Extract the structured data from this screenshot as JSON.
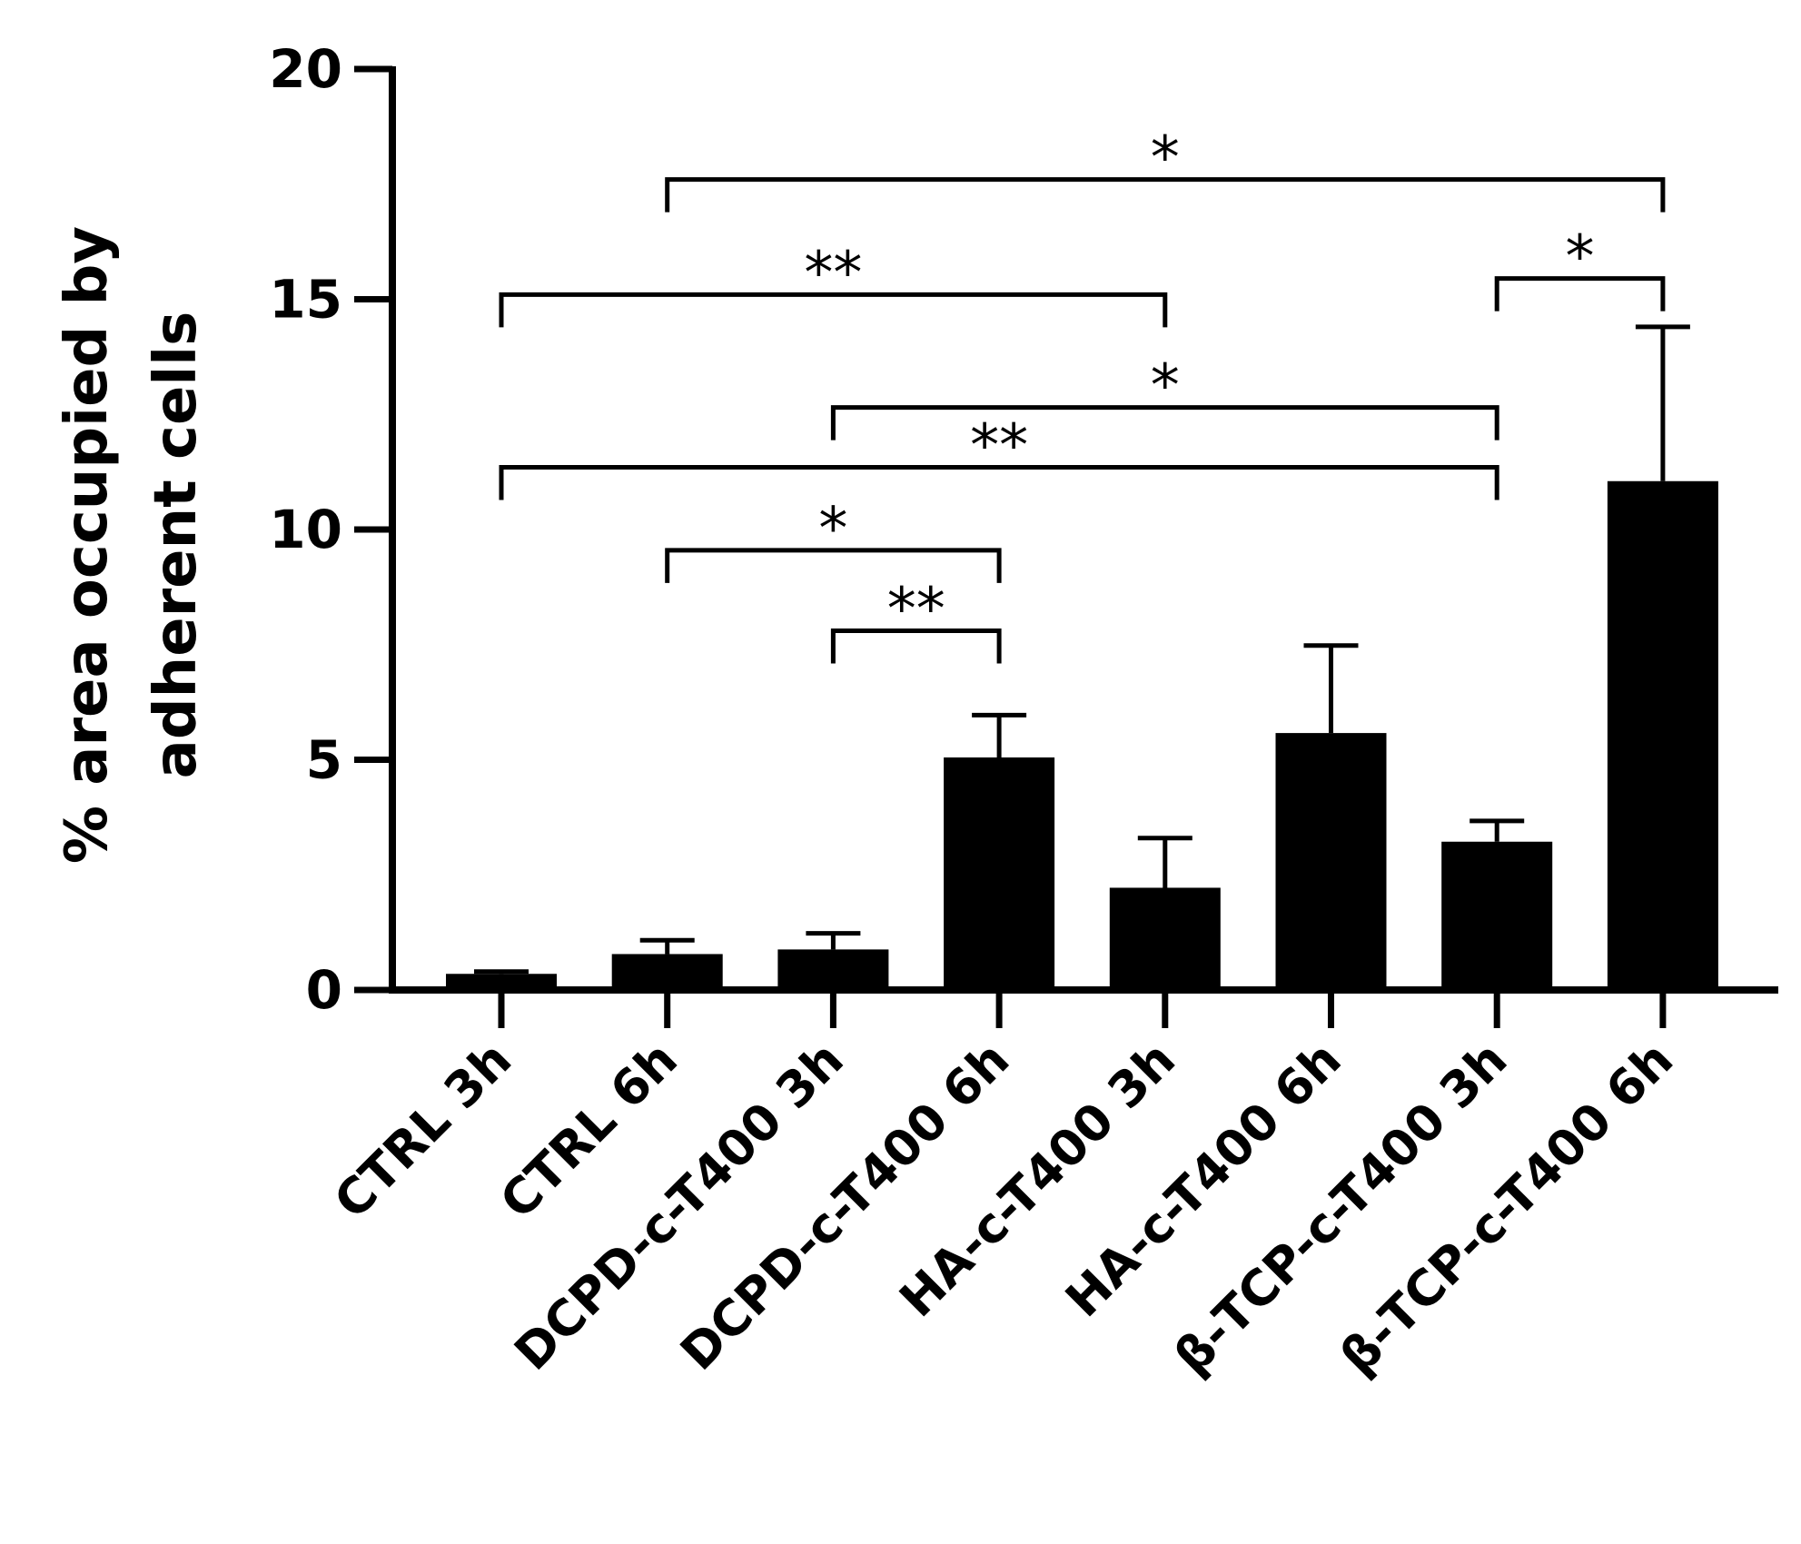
{
  "chart_data": {
    "type": "bar",
    "title": "",
    "xlabel": "",
    "ylabel_lines": [
      "% area occupied by",
      "adherent cells"
    ],
    "ylim": [
      0,
      20
    ],
    "yticks": [
      0,
      5,
      10,
      15,
      20
    ],
    "categories": [
      "CTRL 3h",
      "CTRL 6h",
      "DCPD-c-T400 3h",
      "DCPD-c-T400 6h",
      "HA-c-T400 3h",
      "HA-c-T400 6h",
      "β-TCP-c-T400 3h",
      "β-TCP-c-T400 6h"
    ],
    "values": [
      0.35,
      0.78,
      0.88,
      5.05,
      2.22,
      5.58,
      3.22,
      11.05
    ],
    "errors": [
      0.05,
      0.3,
      0.35,
      0.92,
      1.08,
      1.9,
      0.45,
      3.35
    ],
    "colors": {
      "bar": "#000000",
      "axis": "#000000"
    },
    "significance": [
      {
        "from": 1,
        "to": 7,
        "label": "*",
        "level": 17.6
      },
      {
        "from": 0,
        "to": 4,
        "label": "**",
        "level": 15.1
      },
      {
        "from": 6,
        "to": 7,
        "label": "*",
        "level": 15.45
      },
      {
        "from": 2,
        "to": 6,
        "label": "*",
        "level": 12.65
      },
      {
        "from": 0,
        "to": 6,
        "label": "**",
        "level": 11.35
      },
      {
        "from": 1,
        "to": 3,
        "label": "*",
        "level": 9.55
      },
      {
        "from": 2,
        "to": 3,
        "label": "**",
        "level": 7.8
      }
    ]
  }
}
